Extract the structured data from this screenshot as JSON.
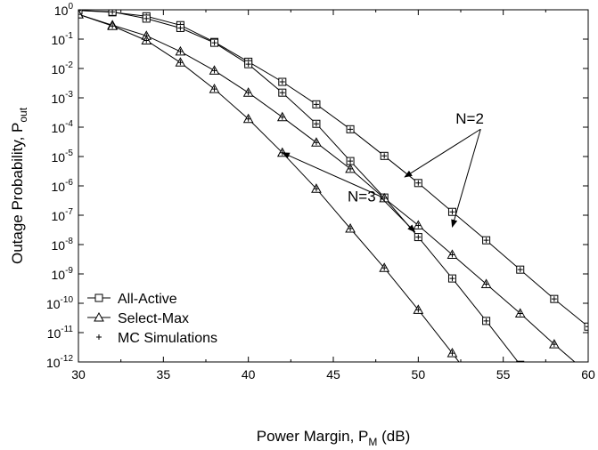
{
  "chart_data": {
    "type": "line",
    "title": "",
    "xlabel": {
      "main": "Power Margin, P",
      "sub": "M",
      "unit": "(dB)"
    },
    "ylabel": {
      "main": "Outage Probability, P",
      "sub": "out"
    },
    "xlim": [
      30,
      60
    ],
    "ylim_log10": [
      -12,
      0
    ],
    "y_scale": "log",
    "x_ticks": [
      30,
      35,
      40,
      45,
      50,
      55,
      60
    ],
    "x_tick_labels": [
      "30",
      "35",
      "40",
      "45",
      "50",
      "55",
      "60"
    ],
    "y_tick_exponents": [
      0,
      -1,
      -2,
      -3,
      -4,
      -5,
      -6,
      -7,
      -8,
      -9,
      -10,
      -11,
      -12
    ],
    "y_tick_base": "10",
    "grid": false,
    "legend": {
      "position": "bottom-left",
      "entries": [
        {
          "label": "All-Active",
          "marker": "square"
        },
        {
          "label": "Select-Max",
          "marker": "triangle"
        },
        {
          "label": "MC Simulations",
          "marker": "plus"
        }
      ]
    },
    "series": [
      {
        "scheme": "All-Active",
        "N": 2,
        "marker": "square",
        "x": [
          30,
          32,
          34,
          36,
          38,
          40,
          42,
          44,
          46,
          48,
          50,
          52,
          54,
          56,
          58,
          60
        ],
        "y": [
          0.95,
          0.82,
          0.6,
          0.3,
          0.08,
          0.017,
          0.0035,
          0.0006,
          8.5e-05,
          1.05e-05,
          1.25e-06,
          1.3e-07,
          1.4e-08,
          1.4e-09,
          1.4e-10,
          1.6e-11
        ]
      },
      {
        "scheme": "All-Active",
        "N": 3,
        "marker": "square",
        "x": [
          30,
          32,
          34,
          36,
          38,
          40,
          42,
          44,
          46,
          48,
          50,
          52,
          54,
          56
        ],
        "y": [
          0.95,
          0.85,
          0.5,
          0.24,
          0.075,
          0.014,
          0.0015,
          0.00013,
          7e-06,
          4e-07,
          1.8e-08,
          7e-10,
          2.5e-11,
          8e-13
        ]
      },
      {
        "scheme": "Select-Max",
        "N": 2,
        "marker": "triangle",
        "x": [
          30,
          32,
          34,
          36,
          38,
          40,
          42,
          44,
          46,
          48,
          50,
          52,
          54,
          56,
          58,
          60
        ],
        "y": [
          0.7,
          0.3,
          0.13,
          0.038,
          0.0085,
          0.0015,
          0.00022,
          3e-05,
          3.8e-06,
          3.8e-07,
          4.5e-08,
          4.5e-09,
          4.5e-10,
          4.5e-11,
          4e-12,
          4e-13
        ]
      },
      {
        "scheme": "Select-Max",
        "N": 3,
        "marker": "triangle",
        "x": [
          30,
          32,
          34,
          36,
          38,
          40,
          42,
          44,
          46,
          48,
          50,
          52,
          54
        ],
        "y": [
          0.7,
          0.28,
          0.09,
          0.016,
          0.002,
          0.00019,
          1.35e-05,
          8e-07,
          3.5e-08,
          1.6e-09,
          6e-11,
          2e-12,
          6e-14
        ]
      }
    ],
    "annotations": [
      {
        "text": "N=2",
        "anchor_xy": [
          52.2,
          0.00013
        ],
        "targets": [
          [
            49.2,
            2e-06
          ],
          [
            52.0,
            4e-08
          ]
        ]
      },
      {
        "text": "N=3",
        "anchor_xy": [
          47.5,
          3e-07
        ],
        "targets": [
          [
            42.0,
            1.35e-05
          ],
          [
            49.8,
            2.7e-08
          ]
        ]
      }
    ]
  }
}
